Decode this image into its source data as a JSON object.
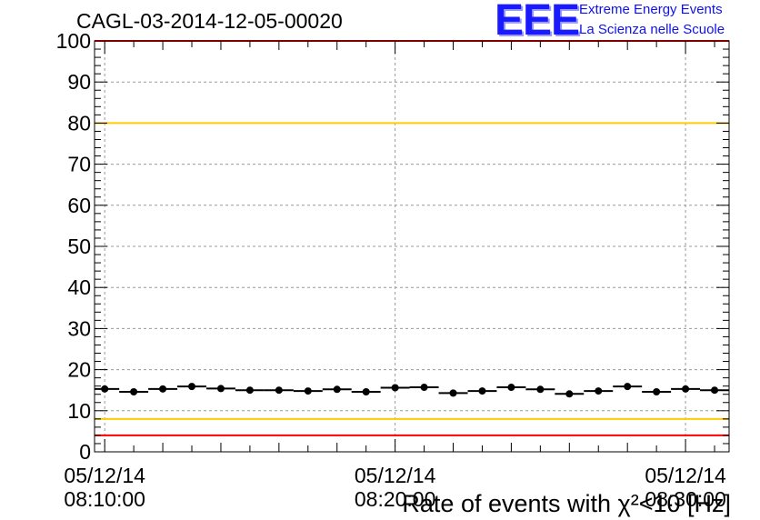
{
  "header": {
    "title": "CAGL-03-2014-12-05-00020",
    "logo_text": "EEE",
    "logo_line1": "Extreme Energy Events",
    "logo_line2": "La Scienza nelle Scuole"
  },
  "chart_data": {
    "type": "scatter",
    "title": "CAGL-03-2014-12-05-00020",
    "xlabel": "Rate of events with χ²<10 [Hz]",
    "ylabel": "",
    "ylim": [
      0,
      100
    ],
    "yticks": [
      0,
      10,
      20,
      30,
      40,
      50,
      60,
      70,
      80,
      90,
      100
    ],
    "xlim_minutes": [
      -0.35,
      21.5
    ],
    "xticks": [
      {
        "minute": 0,
        "date": "05/12/14",
        "time": "08:10:00"
      },
      {
        "minute": 10,
        "date": "05/12/14",
        "time": "08:20:00"
      },
      {
        "minute": 20,
        "date": "05/12/14",
        "time": "08:30:00"
      }
    ],
    "grid": true,
    "reference_lines": [
      {
        "value": 100,
        "color": "#ff0000"
      },
      {
        "value": 80,
        "color": "#ffcc00"
      },
      {
        "value": 8,
        "color": "#ffcc00"
      },
      {
        "value": 4,
        "color": "#ff0000"
      }
    ],
    "bin_width_minutes": 1,
    "series": [
      {
        "x": [
          0,
          1,
          2,
          3,
          4,
          5,
          6,
          7,
          8,
          9,
          10,
          11,
          12,
          13,
          14,
          15,
          16,
          17,
          18,
          19,
          20,
          21
        ],
        "values": [
          15.3,
          14.6,
          15.3,
          15.9,
          15.4,
          15.0,
          15.0,
          14.8,
          15.2,
          14.6,
          15.6,
          15.7,
          14.3,
          14.8,
          15.7,
          15.2,
          14.1,
          14.8,
          15.9,
          14.6,
          15.3,
          15.0
        ],
        "color": "#000000"
      }
    ]
  }
}
